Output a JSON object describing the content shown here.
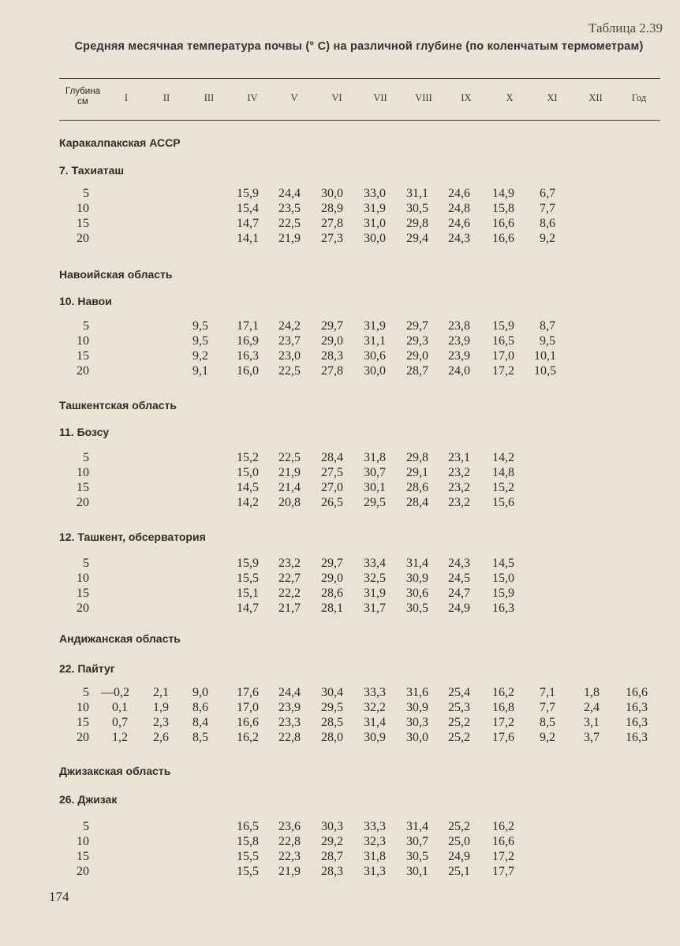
{
  "table_number": "Таблица 2.39",
  "title": "Средняя месячная температура почвы (° С) на различной глубине (по коленчатым термометрам)",
  "columns": {
    "depth_line1": "Глубина",
    "depth_line2": "см",
    "months": [
      "I",
      "II",
      "III",
      "IV",
      "V",
      "VI",
      "VII",
      "VIII",
      "IX",
      "X",
      "XI",
      "XII",
      "Год"
    ]
  },
  "sections": [
    {
      "region": "Каракалпакская АССР",
      "station": "7. Тахиаташ",
      "rows": [
        {
          "depth": "5",
          "values": [
            "",
            "",
            "",
            "15,9",
            "24,4",
            "30,0",
            "33,0",
            "31,1",
            "24,6",
            "14,9",
            "6,7",
            "",
            ""
          ]
        },
        {
          "depth": "10",
          "values": [
            "",
            "",
            "",
            "15,4",
            "23,5",
            "28,9",
            "31,9",
            "30,5",
            "24,8",
            "15,8",
            "7,7",
            "",
            ""
          ]
        },
        {
          "depth": "15",
          "values": [
            "",
            "",
            "",
            "14,7",
            "22,5",
            "27,8",
            "31,0",
            "29,8",
            "24,6",
            "16,6",
            "8,6",
            "",
            ""
          ]
        },
        {
          "depth": "20",
          "values": [
            "",
            "",
            "",
            "14,1",
            "21,9",
            "27,3",
            "30,0",
            "29,4",
            "24,3",
            "16,6",
            "9,2",
            "",
            ""
          ]
        }
      ]
    },
    {
      "region": "Навоийская область",
      "station": "10. Навои",
      "rows": [
        {
          "depth": "5",
          "values": [
            "",
            "",
            "9,5",
            "17,1",
            "24,2",
            "29,7",
            "31,9",
            "29,7",
            "23,8",
            "15,9",
            "8,7",
            "",
            ""
          ]
        },
        {
          "depth": "10",
          "values": [
            "",
            "",
            "9,5",
            "16,9",
            "23,7",
            "29,0",
            "31,1",
            "29,3",
            "23,9",
            "16,5",
            "9,5",
            "",
            ""
          ]
        },
        {
          "depth": "15",
          "values": [
            "",
            "",
            "9,2",
            "16,3",
            "23,0",
            "28,3",
            "30,6",
            "29,0",
            "23,9",
            "17,0",
            "10,1",
            "",
            ""
          ]
        },
        {
          "depth": "20",
          "values": [
            "",
            "",
            "9,1",
            "16,0",
            "22,5",
            "27,8",
            "30,0",
            "28,7",
            "24,0",
            "17,2",
            "10,5",
            "",
            ""
          ]
        }
      ]
    },
    {
      "region": "Ташкентская область",
      "station": "11. Бозсу",
      "rows": [
        {
          "depth": "5",
          "values": [
            "",
            "",
            "",
            "15,2",
            "22,5",
            "28,4",
            "31,8",
            "29,8",
            "23,1",
            "14,2",
            "",
            "",
            ""
          ]
        },
        {
          "depth": "10",
          "values": [
            "",
            "",
            "",
            "15,0",
            "21,9",
            "27,5",
            "30,7",
            "29,1",
            "23,2",
            "14,8",
            "",
            "",
            ""
          ]
        },
        {
          "depth": "15",
          "values": [
            "",
            "",
            "",
            "14,5",
            "21,4",
            "27,0",
            "30,1",
            "28,6",
            "23,2",
            "15,2",
            "",
            "",
            ""
          ]
        },
        {
          "depth": "20",
          "values": [
            "",
            "",
            "",
            "14,2",
            "20,8",
            "26,5",
            "29,5",
            "28,4",
            "23,2",
            "15,6",
            "",
            "",
            ""
          ]
        }
      ]
    },
    {
      "region": "",
      "station": "12. Ташкент, обсерватория",
      "rows": [
        {
          "depth": "5",
          "values": [
            "",
            "",
            "",
            "15,9",
            "23,2",
            "29,7",
            "33,4",
            "31,4",
            "24,3",
            "14,5",
            "",
            "",
            ""
          ]
        },
        {
          "depth": "10",
          "values": [
            "",
            "",
            "",
            "15,5",
            "22,7",
            "29,0",
            "32,5",
            "30,9",
            "24,5",
            "15,0",
            "",
            "",
            ""
          ]
        },
        {
          "depth": "15",
          "values": [
            "",
            "",
            "",
            "15,1",
            "22,2",
            "28,6",
            "31,9",
            "30,6",
            "24,7",
            "15,9",
            "",
            "",
            ""
          ]
        },
        {
          "depth": "20",
          "values": [
            "",
            "",
            "",
            "14,7",
            "21,7",
            "28,1",
            "31,7",
            "30,5",
            "24,9",
            "16,3",
            "",
            "",
            ""
          ]
        }
      ]
    },
    {
      "region": "Андижанская область",
      "station": "22. Пайтуг",
      "rows": [
        {
          "depth": "5",
          "values": [
            "—0,2",
            "2,1",
            "9,0",
            "17,6",
            "24,4",
            "30,4",
            "33,3",
            "31,6",
            "25,4",
            "16,2",
            "7,1",
            "1,8",
            "16,6"
          ]
        },
        {
          "depth": "10",
          "values": [
            "0,1",
            "1,9",
            "8,6",
            "17,0",
            "23,9",
            "29,5",
            "32,2",
            "30,9",
            "25,3",
            "16,8",
            "7,7",
            "2,4",
            "16,3"
          ]
        },
        {
          "depth": "15",
          "values": [
            "0,7",
            "2,3",
            "8,4",
            "16,6",
            "23,3",
            "28,5",
            "31,4",
            "30,3",
            "25,2",
            "17,2",
            "8,5",
            "3,1",
            "16,3"
          ]
        },
        {
          "depth": "20",
          "values": [
            "1,2",
            "2,6",
            "8,5",
            "16,2",
            "22,8",
            "28,0",
            "30,9",
            "30,0",
            "25,2",
            "17,6",
            "9,2",
            "3,7",
            "16,3"
          ]
        }
      ]
    },
    {
      "region": "Джизакская область",
      "station": "26. Джизак",
      "rows": [
        {
          "depth": "5",
          "values": [
            "",
            "",
            "",
            "16,5",
            "23,6",
            "30,3",
            "33,3",
            "31,4",
            "25,2",
            "16,2",
            "",
            "",
            ""
          ]
        },
        {
          "depth": "10",
          "values": [
            "",
            "",
            "",
            "15,8",
            "22,8",
            "29,2",
            "32,3",
            "30,7",
            "25,0",
            "16,6",
            "",
            "",
            ""
          ]
        },
        {
          "depth": "15",
          "values": [
            "",
            "",
            "",
            "15,5",
            "22,3",
            "28,7",
            "31,8",
            "30,5",
            "24,9",
            "17,2",
            "",
            "",
            ""
          ]
        },
        {
          "depth": "20",
          "values": [
            "",
            "",
            "",
            "15,5",
            "21,9",
            "28,3",
            "31,3",
            "30,1",
            "25,1",
            "17,7",
            "",
            "",
            ""
          ]
        }
      ]
    }
  ],
  "page_number": "174"
}
